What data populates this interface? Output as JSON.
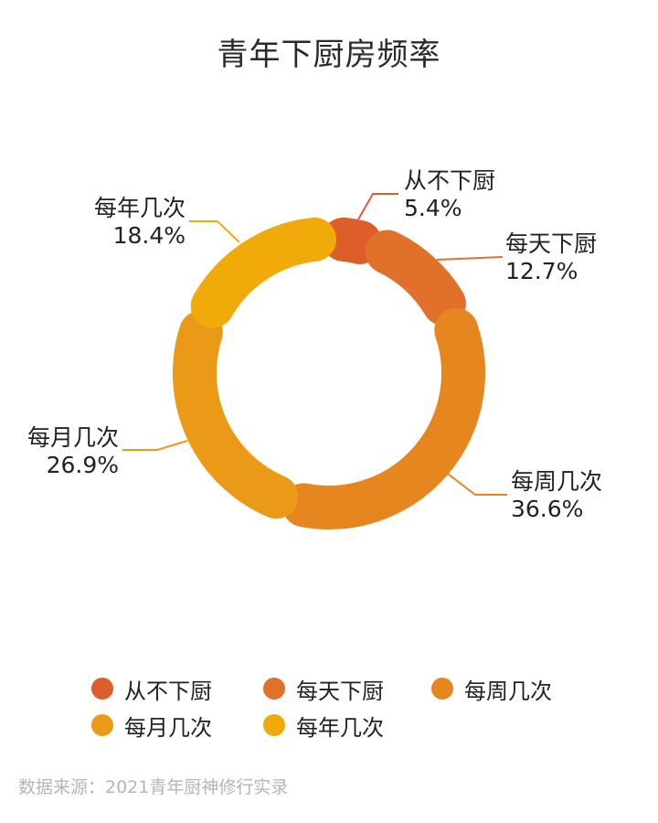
{
  "title": "青年下厨房频率",
  "source": "数据来源：2021青年厨神修行实录",
  "chart_data": {
    "type": "pie",
    "variant": "donut",
    "title": "青年下厨房频率",
    "categories": [
      "从不下厨",
      "每天下厨",
      "每周几次",
      "每月几次",
      "每年几次"
    ],
    "values": [
      5.4,
      12.7,
      36.6,
      26.9,
      18.4
    ],
    "value_labels": [
      "5.4%",
      "12.7%",
      "36.6%",
      "26.9%",
      "18.4%"
    ],
    "unit": "%",
    "colors": [
      "#dd5e2b",
      "#e0702a",
      "#e6861f",
      "#eb9a17",
      "#f0aa0a"
    ],
    "legend_position": "bottom"
  }
}
